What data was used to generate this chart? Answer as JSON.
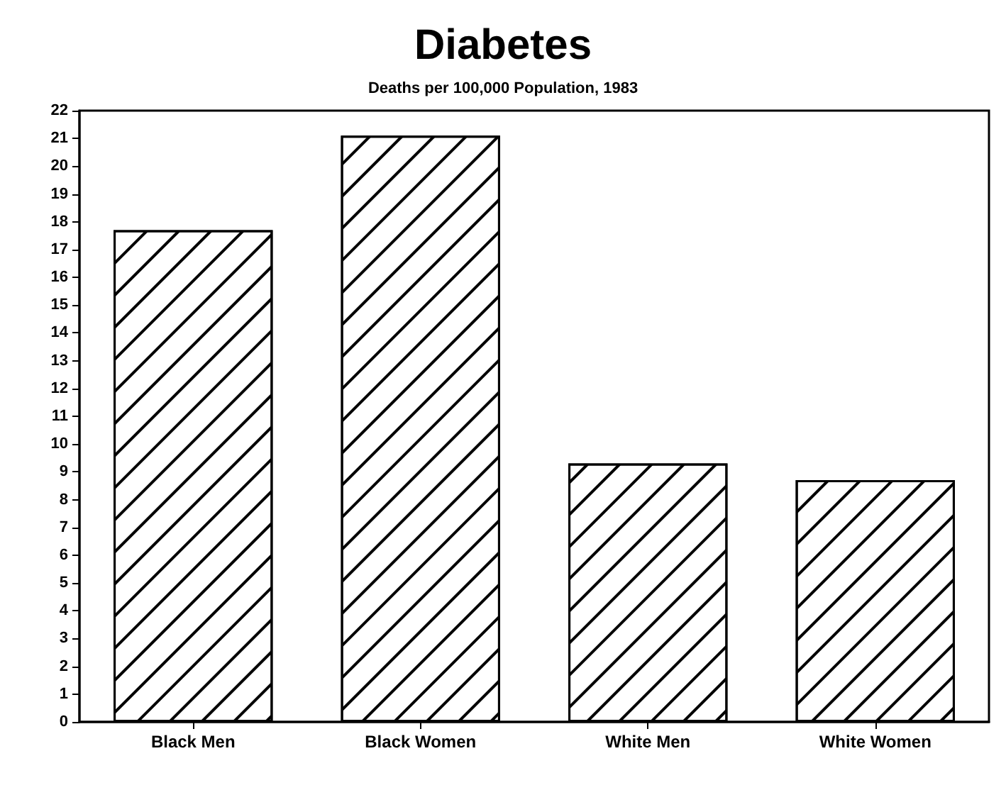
{
  "chart_data": {
    "type": "bar",
    "title": "Diabetes",
    "subtitle": "Deaths per 100,000 Population, 1983",
    "categories": [
      "Black Men",
      "Black Women",
      "White Men",
      "White Women"
    ],
    "values": [
      17.7,
      21.1,
      9.3,
      8.7
    ],
    "color": "#ffffff",
    "ylim": [
      0,
      22
    ],
    "yticks": [
      0,
      1,
      2,
      3,
      4,
      5,
      6,
      7,
      8,
      9,
      10,
      11,
      12,
      13,
      14,
      15,
      16,
      17,
      18,
      19,
      20,
      21,
      22
    ],
    "grid": false
  }
}
